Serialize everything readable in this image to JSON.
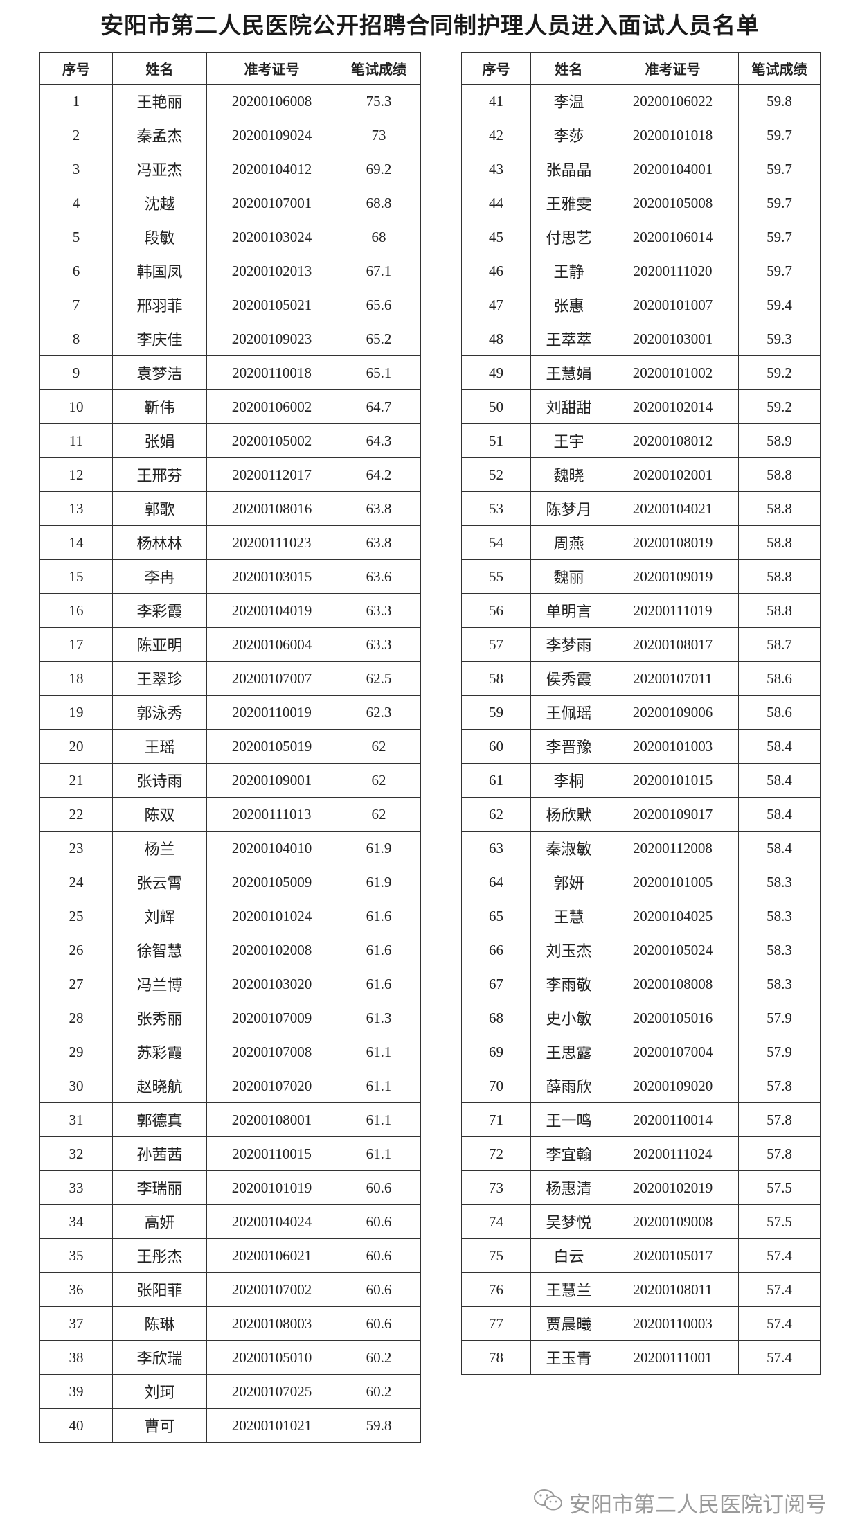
{
  "title": "安阳市第二人民医院公开招聘合同制护理人员进入面试人员名单",
  "columns": [
    "序号",
    "姓名",
    "准考证号",
    "笔试成绩"
  ],
  "watermark": {
    "icon": "wechat-icon",
    "text": "安阳市第二人民医院订阅号"
  },
  "rows": [
    [
      "1",
      "王艳丽",
      "20200106008",
      "75.3"
    ],
    [
      "2",
      "秦孟杰",
      "20200109024",
      "73"
    ],
    [
      "3",
      "冯亚杰",
      "20200104012",
      "69.2"
    ],
    [
      "4",
      "沈越",
      "20200107001",
      "68.8"
    ],
    [
      "5",
      "段敏",
      "20200103024",
      "68"
    ],
    [
      "6",
      "韩国凤",
      "20200102013",
      "67.1"
    ],
    [
      "7",
      "邢羽菲",
      "20200105021",
      "65.6"
    ],
    [
      "8",
      "李庆佳",
      "20200109023",
      "65.2"
    ],
    [
      "9",
      "袁梦洁",
      "20200110018",
      "65.1"
    ],
    [
      "10",
      "靳伟",
      "20200106002",
      "64.7"
    ],
    [
      "11",
      "张娟",
      "20200105002",
      "64.3"
    ],
    [
      "12",
      "王邢芬",
      "20200112017",
      "64.2"
    ],
    [
      "13",
      "郭歌",
      "20200108016",
      "63.8"
    ],
    [
      "14",
      "杨林林",
      "20200111023",
      "63.8"
    ],
    [
      "15",
      "李冉",
      "20200103015",
      "63.6"
    ],
    [
      "16",
      "李彩霞",
      "20200104019",
      "63.3"
    ],
    [
      "17",
      "陈亚明",
      "20200106004",
      "63.3"
    ],
    [
      "18",
      "王翠珍",
      "20200107007",
      "62.5"
    ],
    [
      "19",
      "郭泳秀",
      "20200110019",
      "62.3"
    ],
    [
      "20",
      "王瑶",
      "20200105019",
      "62"
    ],
    [
      "21",
      "张诗雨",
      "20200109001",
      "62"
    ],
    [
      "22",
      "陈双",
      "20200111013",
      "62"
    ],
    [
      "23",
      "杨兰",
      "20200104010",
      "61.9"
    ],
    [
      "24",
      "张云霄",
      "20200105009",
      "61.9"
    ],
    [
      "25",
      "刘辉",
      "20200101024",
      "61.6"
    ],
    [
      "26",
      "徐智慧",
      "20200102008",
      "61.6"
    ],
    [
      "27",
      "冯兰博",
      "20200103020",
      "61.6"
    ],
    [
      "28",
      "张秀丽",
      "20200107009",
      "61.3"
    ],
    [
      "29",
      "苏彩霞",
      "20200107008",
      "61.1"
    ],
    [
      "30",
      "赵晓航",
      "20200107020",
      "61.1"
    ],
    [
      "31",
      "郭德真",
      "20200108001",
      "61.1"
    ],
    [
      "32",
      "孙茜茜",
      "20200110015",
      "61.1"
    ],
    [
      "33",
      "李瑞丽",
      "20200101019",
      "60.6"
    ],
    [
      "34",
      "高妍",
      "20200104024",
      "60.6"
    ],
    [
      "35",
      "王彤杰",
      "20200106021",
      "60.6"
    ],
    [
      "36",
      "张阳菲",
      "20200107002",
      "60.6"
    ],
    [
      "37",
      "陈琳",
      "20200108003",
      "60.6"
    ],
    [
      "38",
      "李欣瑞",
      "20200105010",
      "60.2"
    ],
    [
      "39",
      "刘珂",
      "20200107025",
      "60.2"
    ],
    [
      "40",
      "曹可",
      "20200101021",
      "59.8"
    ],
    [
      "41",
      "李温",
      "20200106022",
      "59.8"
    ],
    [
      "42",
      "李莎",
      "20200101018",
      "59.7"
    ],
    [
      "43",
      "张晶晶",
      "20200104001",
      "59.7"
    ],
    [
      "44",
      "王雅雯",
      "20200105008",
      "59.7"
    ],
    [
      "45",
      "付思艺",
      "20200106014",
      "59.7"
    ],
    [
      "46",
      "王静",
      "20200111020",
      "59.7"
    ],
    [
      "47",
      "张惠",
      "20200101007",
      "59.4"
    ],
    [
      "48",
      "王萃萃",
      "20200103001",
      "59.3"
    ],
    [
      "49",
      "王慧娟",
      "20200101002",
      "59.2"
    ],
    [
      "50",
      "刘甜甜",
      "20200102014",
      "59.2"
    ],
    [
      "51",
      "王宇",
      "20200108012",
      "58.9"
    ],
    [
      "52",
      "魏晓",
      "20200102001",
      "58.8"
    ],
    [
      "53",
      "陈梦月",
      "20200104021",
      "58.8"
    ],
    [
      "54",
      "周燕",
      "20200108019",
      "58.8"
    ],
    [
      "55",
      "魏丽",
      "20200109019",
      "58.8"
    ],
    [
      "56",
      "单明言",
      "20200111019",
      "58.8"
    ],
    [
      "57",
      "李梦雨",
      "20200108017",
      "58.7"
    ],
    [
      "58",
      "侯秀霞",
      "20200107011",
      "58.6"
    ],
    [
      "59",
      "王佩瑶",
      "20200109006",
      "58.6"
    ],
    [
      "60",
      "李晋豫",
      "20200101003",
      "58.4"
    ],
    [
      "61",
      "李桐",
      "20200101015",
      "58.4"
    ],
    [
      "62",
      "杨欣默",
      "20200109017",
      "58.4"
    ],
    [
      "63",
      "秦淑敏",
      "20200112008",
      "58.4"
    ],
    [
      "64",
      "郭妍",
      "20200101005",
      "58.3"
    ],
    [
      "65",
      "王慧",
      "20200104025",
      "58.3"
    ],
    [
      "66",
      "刘玉杰",
      "20200105024",
      "58.3"
    ],
    [
      "67",
      "李雨敬",
      "20200108008",
      "58.3"
    ],
    [
      "68",
      "史小敏",
      "20200105016",
      "57.9"
    ],
    [
      "69",
      "王思露",
      "20200107004",
      "57.9"
    ],
    [
      "70",
      "薛雨欣",
      "20200109020",
      "57.8"
    ],
    [
      "71",
      "王一鸣",
      "20200110014",
      "57.8"
    ],
    [
      "72",
      "李宜翰",
      "20200111024",
      "57.8"
    ],
    [
      "73",
      "杨惠清",
      "20200102019",
      "57.5"
    ],
    [
      "74",
      "吴梦悦",
      "20200109008",
      "57.5"
    ],
    [
      "75",
      "白云",
      "20200105017",
      "57.4"
    ],
    [
      "76",
      "王慧兰",
      "20200108011",
      "57.4"
    ],
    [
      "77",
      "贾晨曦",
      "20200110003",
      "57.4"
    ],
    [
      "78",
      "王玉青",
      "20200111001",
      "57.4"
    ]
  ]
}
